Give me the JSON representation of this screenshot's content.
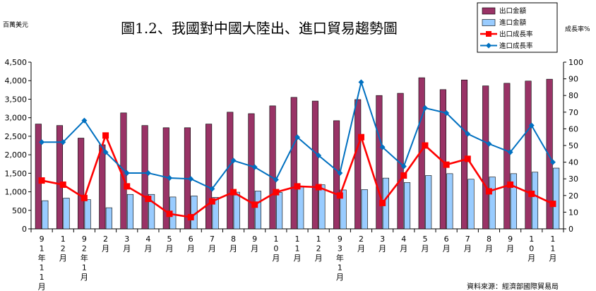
{
  "chart_data": {
    "type": "bar",
    "title": "圖1.2、我國對中國大陸出、進口貿易趨勢圖",
    "ylabel": "百萬美元",
    "y2label": "成長率%",
    "source": "資料來源：經濟部國際貿易局",
    "ylim": [
      0,
      4500
    ],
    "y2lim": [
      0,
      100
    ],
    "yticks": [
      "0",
      "500",
      "1,000",
      "1,500",
      "2,000",
      "2,500",
      "3,000",
      "3,500",
      "4,000",
      "4,500"
    ],
    "y2ticks": [
      "0",
      "10",
      "20",
      "30",
      "40",
      "50",
      "60",
      "70",
      "80",
      "90",
      "100"
    ],
    "legend_position": "top-right",
    "grid": false,
    "categories": [
      "91年11月",
      "12月",
      "92年1月",
      "2月",
      "3月",
      "4月",
      "5月",
      "6月",
      "7月",
      "8月",
      "9月",
      "10月",
      "11月",
      "12月",
      "93年1月",
      "2月",
      "3月",
      "4月",
      "5月",
      "6月",
      "7月",
      "8月",
      "9月",
      "10月",
      "11月"
    ],
    "category_labels": [
      [
        "9",
        "1",
        "年",
        "1",
        "1",
        "月"
      ],
      [
        "1",
        "2",
        "月"
      ],
      [
        "9",
        "2",
        "年",
        "1",
        "月"
      ],
      [
        "2",
        "月"
      ],
      [
        "3",
        "月"
      ],
      [
        "4",
        "月"
      ],
      [
        "5",
        "月"
      ],
      [
        "6",
        "月"
      ],
      [
        "7",
        "月"
      ],
      [
        "8",
        "月"
      ],
      [
        "9",
        "月"
      ],
      [
        "1",
        "0",
        "月"
      ],
      [
        "1",
        "1",
        "月"
      ],
      [
        "1",
        "2",
        "月"
      ],
      [
        "9",
        "3",
        "年",
        "1",
        "月"
      ],
      [
        "2",
        "月"
      ],
      [
        "3",
        "月"
      ],
      [
        "4",
        "月"
      ],
      [
        "5",
        "月"
      ],
      [
        "6",
        "月"
      ],
      [
        "7",
        "月"
      ],
      [
        "8",
        "月"
      ],
      [
        "9",
        "月"
      ],
      [
        "1",
        "0",
        "月"
      ],
      [
        "1",
        "1",
        "月"
      ]
    ],
    "series": [
      {
        "name": "出口金額",
        "kind": "bar",
        "axis": "left",
        "color": "#993366",
        "values": [
          2830,
          2790,
          2450,
          2270,
          3130,
          2790,
          2730,
          2730,
          2830,
          3150,
          3110,
          3320,
          3550,
          3450,
          2920,
          3490,
          3600,
          3660,
          4080,
          3760,
          4020,
          3860,
          3930,
          3990,
          4040
        ]
      },
      {
        "name": "進口金額",
        "kind": "bar",
        "axis": "left",
        "color": "#99ccff",
        "values": [
          760,
          830,
          790,
          570,
          930,
          930,
          860,
          890,
          850,
          990,
          1020,
          980,
          1150,
          1190,
          1050,
          1060,
          1370,
          1250,
          1440,
          1490,
          1340,
          1400,
          1490,
          1530,
          1640
        ]
      },
      {
        "name": "出口成長率",
        "kind": "line",
        "axis": "right",
        "color": "#ff0000",
        "marker": "square",
        "values": [
          29,
          26.5,
          18.5,
          56,
          25.5,
          18,
          9,
          7,
          16.5,
          22,
          14.5,
          22,
          25.5,
          25,
          20,
          55,
          15.5,
          32,
          50,
          38.5,
          42,
          22.5,
          26.5,
          21,
          15
        ]
      },
      {
        "name": "進口成長率",
        "kind": "line",
        "axis": "right",
        "color": "#0070c0",
        "marker": "diamond",
        "values": [
          52,
          52,
          65,
          46,
          33.5,
          33.5,
          30.5,
          30,
          24,
          41,
          37,
          29.5,
          55,
          44,
          33.5,
          88,
          49,
          37.5,
          72.5,
          69.5,
          57,
          51,
          46,
          62,
          40
        ]
      }
    ]
  }
}
